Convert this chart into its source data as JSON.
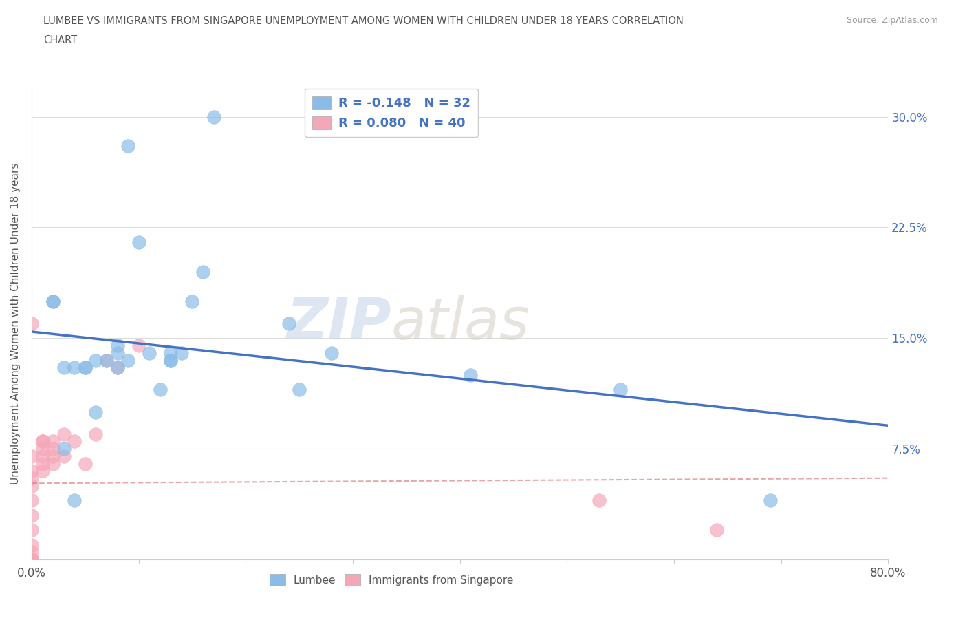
{
  "title_line1": "LUMBEE VS IMMIGRANTS FROM SINGAPORE UNEMPLOYMENT AMONG WOMEN WITH CHILDREN UNDER 18 YEARS CORRELATION",
  "title_line2": "CHART",
  "source_text": "Source: ZipAtlas.com",
  "ylabel": "Unemployment Among Women with Children Under 18 years",
  "xlim": [
    0.0,
    0.8
  ],
  "ylim": [
    0.0,
    0.32
  ],
  "ytick_positions": [
    0.0,
    0.075,
    0.15,
    0.225,
    0.3
  ],
  "ytick_labels": [
    "",
    "7.5%",
    "15.0%",
    "22.5%",
    "30.0%"
  ],
  "xtick_positions": [
    0.0,
    0.1,
    0.2,
    0.3,
    0.4,
    0.5,
    0.6,
    0.7,
    0.8
  ],
  "xtick_labels": [
    "0.0%",
    "",
    "",
    "",
    "",
    "",
    "",
    "",
    "80.0%"
  ],
  "lumbee_color": "#8BBCE8",
  "singapore_color": "#F4A7B9",
  "trend_lumbee_color": "#4472C4",
  "trend_singapore_color": "#E08080",
  "legend_r_lumbee": "R = -0.148",
  "legend_n_lumbee": "N = 32",
  "legend_r_singapore": "R = 0.080",
  "legend_n_singapore": "N = 40",
  "watermark_zip": "ZIP",
  "watermark_atlas": "atlas",
  "lumbee_x": [
    0.02,
    0.02,
    0.03,
    0.04,
    0.05,
    0.05,
    0.06,
    0.06,
    0.07,
    0.08,
    0.09,
    0.09,
    0.1,
    0.11,
    0.13,
    0.13,
    0.14,
    0.15,
    0.16,
    0.17,
    0.24,
    0.25,
    0.28,
    0.41,
    0.55,
    0.69,
    0.08,
    0.08,
    0.12,
    0.13,
    0.03,
    0.04
  ],
  "lumbee_y": [
    0.175,
    0.175,
    0.13,
    0.13,
    0.13,
    0.13,
    0.1,
    0.135,
    0.135,
    0.13,
    0.135,
    0.28,
    0.215,
    0.14,
    0.135,
    0.14,
    0.14,
    0.175,
    0.195,
    0.3,
    0.16,
    0.115,
    0.14,
    0.125,
    0.115,
    0.04,
    0.14,
    0.145,
    0.115,
    0.135,
    0.075,
    0.04
  ],
  "singapore_x": [
    0.0,
    0.0,
    0.0,
    0.0,
    0.0,
    0.0,
    0.0,
    0.0,
    0.0,
    0.0,
    0.0,
    0.0,
    0.0,
    0.0,
    0.0,
    0.0,
    0.0,
    0.0,
    0.0,
    0.0,
    0.01,
    0.01,
    0.01,
    0.01,
    0.01,
    0.01,
    0.02,
    0.02,
    0.02,
    0.02,
    0.03,
    0.03,
    0.04,
    0.05,
    0.06,
    0.07,
    0.08,
    0.1,
    0.53,
    0.64
  ],
  "singapore_y": [
    0.0,
    0.0,
    0.0,
    0.0,
    0.0,
    0.0,
    0.0,
    0.0,
    0.0,
    0.0,
    0.005,
    0.01,
    0.02,
    0.03,
    0.04,
    0.05,
    0.055,
    0.06,
    0.07,
    0.16,
    0.06,
    0.065,
    0.07,
    0.075,
    0.08,
    0.08,
    0.065,
    0.07,
    0.075,
    0.08,
    0.07,
    0.085,
    0.08,
    0.065,
    0.085,
    0.135,
    0.13,
    0.145,
    0.04,
    0.02
  ]
}
